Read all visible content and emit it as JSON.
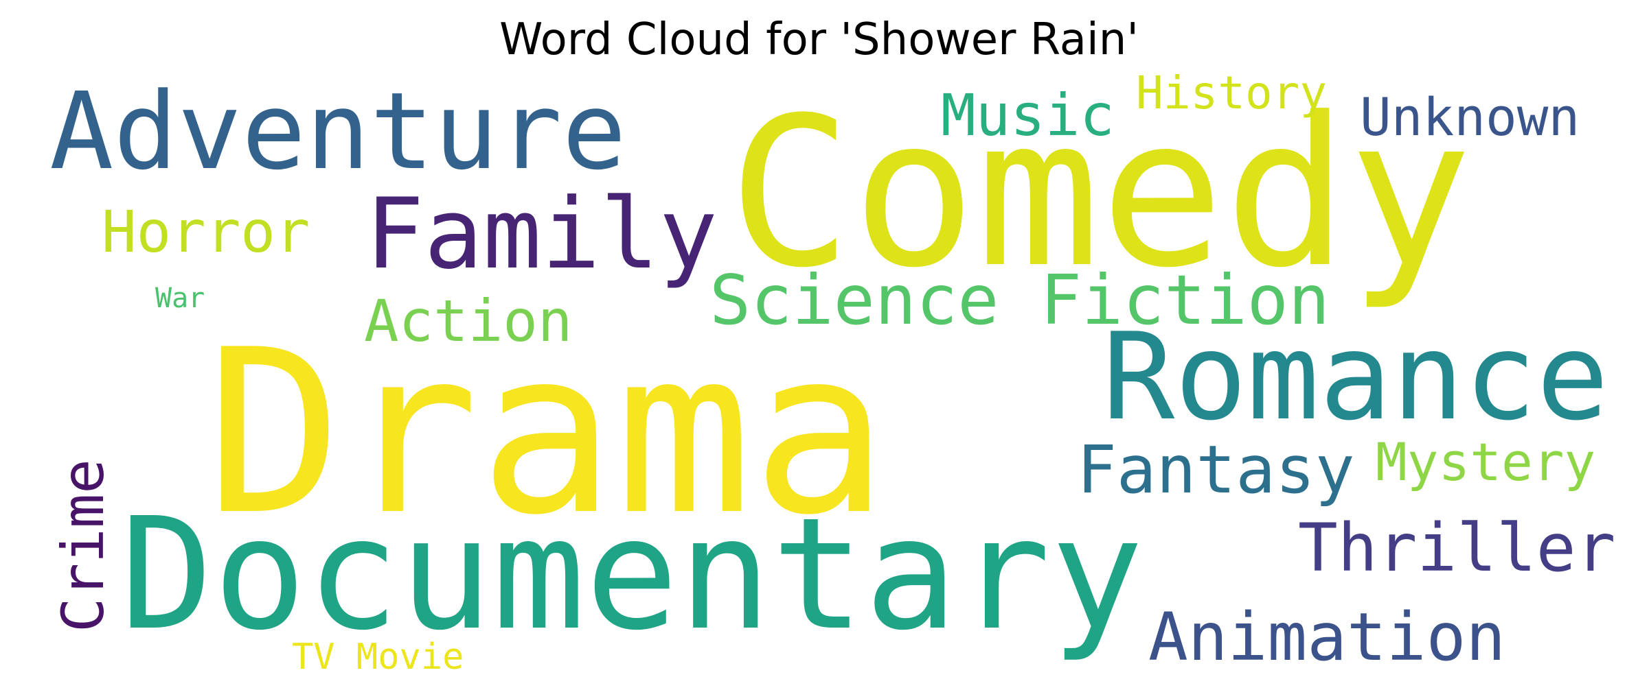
{
  "chart_data": {
    "type": "wordcloud",
    "title": "Word Cloud for 'Shower Rain'",
    "background": "#ffffff",
    "colormap": "viridis",
    "words": [
      {
        "text": "Drama",
        "color": "#f6e51f"
      },
      {
        "text": "Comedy",
        "color": "#dde318"
      },
      {
        "text": "Documentary",
        "color": "#20a486"
      },
      {
        "text": "Romance",
        "color": "#23898e"
      },
      {
        "text": "Adventure",
        "color": "#33638d"
      },
      {
        "text": "Family",
        "color": "#482475"
      },
      {
        "text": "Science Fiction",
        "color": "#54c568"
      },
      {
        "text": "Fantasy",
        "color": "#2d708e"
      },
      {
        "text": "Thriller",
        "color": "#433e85"
      },
      {
        "text": "Animation",
        "color": "#3b528b"
      },
      {
        "text": "Mystery",
        "color": "#8ed645"
      },
      {
        "text": "Horror",
        "color": "#c2df23"
      },
      {
        "text": "Unknown",
        "color": "#3a548c"
      },
      {
        "text": "Music",
        "color": "#29af7f"
      },
      {
        "text": "History",
        "color": "#d2e21b"
      },
      {
        "text": "Action",
        "color": "#7ad151"
      },
      {
        "text": "Crime",
        "color": "#481467"
      },
      {
        "text": "TV Movie",
        "color": "#ece51b"
      },
      {
        "text": "War",
        "color": "#4ac16d"
      }
    ]
  }
}
